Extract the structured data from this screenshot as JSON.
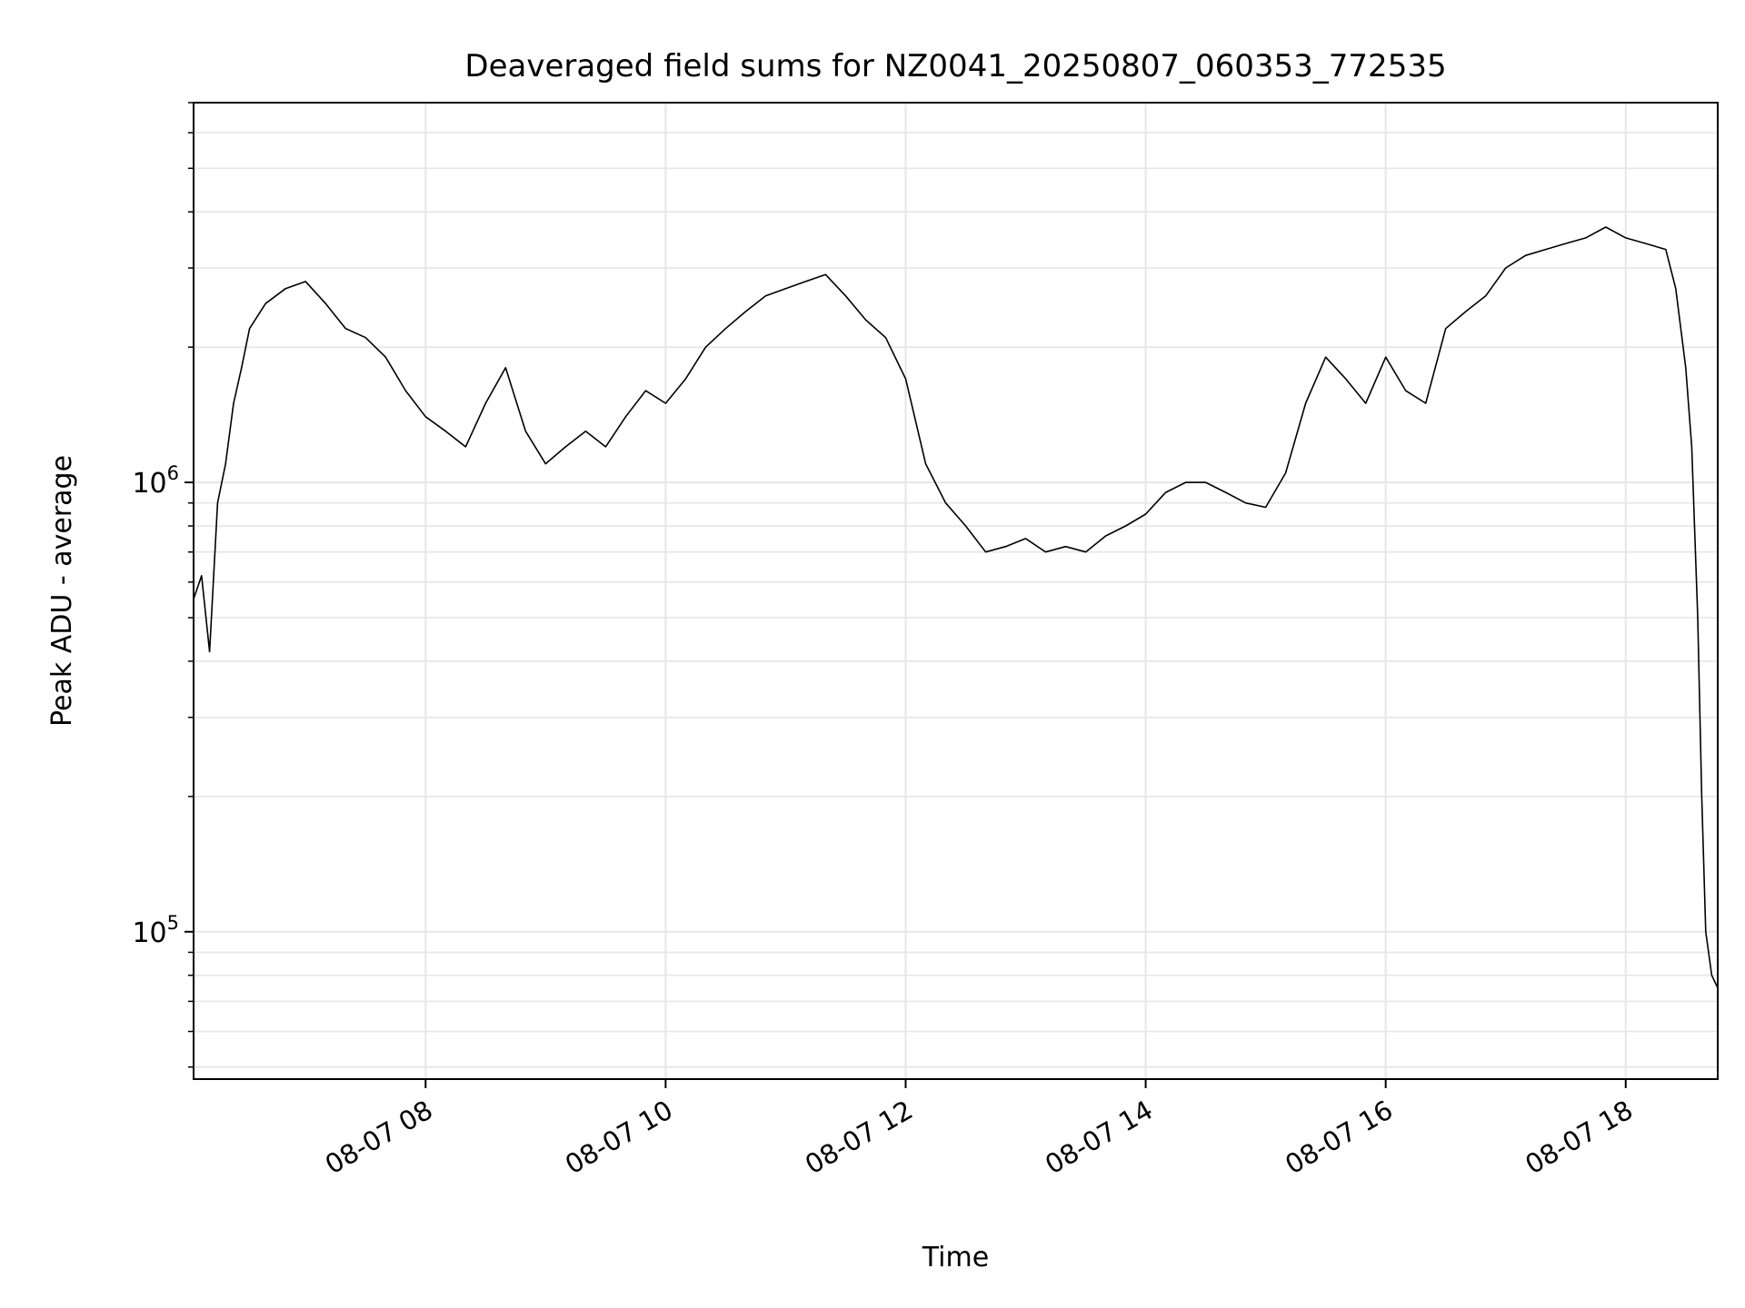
{
  "chart_data": {
    "type": "line",
    "title": "Deaveraged field sums for NZ0041_20250807_060353_772535",
    "xlabel": "Time",
    "ylabel": "Peak ADU - average",
    "yscale": "log",
    "xlim": [
      "2025-08-07T06:04",
      "2025-08-07T18:46"
    ],
    "ylim": [
      47000,
      7000000
    ],
    "grid": true,
    "colors": {
      "line": "#000000",
      "grid": "#e6e6e6",
      "axes": "#000000"
    },
    "x_ticks": [
      {
        "t": "2025-08-07T08:00",
        "label": "08-07 08"
      },
      {
        "t": "2025-08-07T10:00",
        "label": "08-07 10"
      },
      {
        "t": "2025-08-07T12:00",
        "label": "08-07 12"
      },
      {
        "t": "2025-08-07T14:00",
        "label": "08-07 14"
      },
      {
        "t": "2025-08-07T16:00",
        "label": "08-07 16"
      },
      {
        "t": "2025-08-07T18:00",
        "label": "08-07 18"
      }
    ],
    "y_ticks": [
      {
        "value": 100000,
        "base": "10",
        "exp": "5"
      },
      {
        "value": 1000000,
        "base": "10",
        "exp": "6"
      }
    ],
    "series": [
      {
        "color": "#000000",
        "points": [
          [
            "2025-08-07T06:04",
            550000
          ],
          [
            "2025-08-07T06:08",
            620000
          ],
          [
            "2025-08-07T06:12",
            420000
          ],
          [
            "2025-08-07T06:16",
            900000
          ],
          [
            "2025-08-07T06:20",
            1100000
          ],
          [
            "2025-08-07T06:24",
            1500000
          ],
          [
            "2025-08-07T06:28",
            1800000
          ],
          [
            "2025-08-07T06:32",
            2200000
          ],
          [
            "2025-08-07T06:40",
            2500000
          ],
          [
            "2025-08-07T06:50",
            2700000
          ],
          [
            "2025-08-07T07:00",
            2800000
          ],
          [
            "2025-08-07T07:10",
            2500000
          ],
          [
            "2025-08-07T07:20",
            2200000
          ],
          [
            "2025-08-07T07:30",
            2100000
          ],
          [
            "2025-08-07T07:40",
            1900000
          ],
          [
            "2025-08-07T07:50",
            1600000
          ],
          [
            "2025-08-07T08:00",
            1400000
          ],
          [
            "2025-08-07T08:10",
            1300000
          ],
          [
            "2025-08-07T08:20",
            1200000
          ],
          [
            "2025-08-07T08:30",
            1500000
          ],
          [
            "2025-08-07T08:40",
            1800000
          ],
          [
            "2025-08-07T08:50",
            1300000
          ],
          [
            "2025-08-07T09:00",
            1100000
          ],
          [
            "2025-08-07T09:10",
            1200000
          ],
          [
            "2025-08-07T09:20",
            1300000
          ],
          [
            "2025-08-07T09:30",
            1200000
          ],
          [
            "2025-08-07T09:40",
            1400000
          ],
          [
            "2025-08-07T09:50",
            1600000
          ],
          [
            "2025-08-07T10:00",
            1500000
          ],
          [
            "2025-08-07T10:10",
            1700000
          ],
          [
            "2025-08-07T10:20",
            2000000
          ],
          [
            "2025-08-07T10:30",
            2200000
          ],
          [
            "2025-08-07T10:40",
            2400000
          ],
          [
            "2025-08-07T10:50",
            2600000
          ],
          [
            "2025-08-07T11:00",
            2700000
          ],
          [
            "2025-08-07T11:10",
            2800000
          ],
          [
            "2025-08-07T11:20",
            2900000
          ],
          [
            "2025-08-07T11:30",
            2600000
          ],
          [
            "2025-08-07T11:40",
            2300000
          ],
          [
            "2025-08-07T11:50",
            2100000
          ],
          [
            "2025-08-07T12:00",
            1700000
          ],
          [
            "2025-08-07T12:10",
            1100000
          ],
          [
            "2025-08-07T12:20",
            900000
          ],
          [
            "2025-08-07T12:30",
            800000
          ],
          [
            "2025-08-07T12:40",
            700000
          ],
          [
            "2025-08-07T12:50",
            720000
          ],
          [
            "2025-08-07T13:00",
            750000
          ],
          [
            "2025-08-07T13:10",
            700000
          ],
          [
            "2025-08-07T13:20",
            720000
          ],
          [
            "2025-08-07T13:30",
            700000
          ],
          [
            "2025-08-07T13:40",
            760000
          ],
          [
            "2025-08-07T13:50",
            800000
          ],
          [
            "2025-08-07T14:00",
            850000
          ],
          [
            "2025-08-07T14:10",
            950000
          ],
          [
            "2025-08-07T14:20",
            1000000
          ],
          [
            "2025-08-07T14:30",
            1000000
          ],
          [
            "2025-08-07T14:40",
            950000
          ],
          [
            "2025-08-07T14:50",
            900000
          ],
          [
            "2025-08-07T15:00",
            880000
          ],
          [
            "2025-08-07T15:10",
            1050000
          ],
          [
            "2025-08-07T15:20",
            1500000
          ],
          [
            "2025-08-07T15:30",
            1900000
          ],
          [
            "2025-08-07T15:40",
            1700000
          ],
          [
            "2025-08-07T15:50",
            1500000
          ],
          [
            "2025-08-07T16:00",
            1900000
          ],
          [
            "2025-08-07T16:10",
            1600000
          ],
          [
            "2025-08-07T16:20",
            1500000
          ],
          [
            "2025-08-07T16:30",
            2200000
          ],
          [
            "2025-08-07T16:40",
            2400000
          ],
          [
            "2025-08-07T16:50",
            2600000
          ],
          [
            "2025-08-07T17:00",
            3000000
          ],
          [
            "2025-08-07T17:10",
            3200000
          ],
          [
            "2025-08-07T17:20",
            3300000
          ],
          [
            "2025-08-07T17:30",
            3400000
          ],
          [
            "2025-08-07T17:40",
            3500000
          ],
          [
            "2025-08-07T17:50",
            3700000
          ],
          [
            "2025-08-07T18:00",
            3500000
          ],
          [
            "2025-08-07T18:10",
            3400000
          ],
          [
            "2025-08-07T18:20",
            3300000
          ],
          [
            "2025-08-07T18:25",
            2700000
          ],
          [
            "2025-08-07T18:30",
            1800000
          ],
          [
            "2025-08-07T18:33",
            1200000
          ],
          [
            "2025-08-07T18:36",
            500000
          ],
          [
            "2025-08-07T18:38",
            200000
          ],
          [
            "2025-08-07T18:40",
            100000
          ],
          [
            "2025-08-07T18:43",
            80000
          ],
          [
            "2025-08-07T18:46",
            75000
          ]
        ]
      }
    ]
  }
}
